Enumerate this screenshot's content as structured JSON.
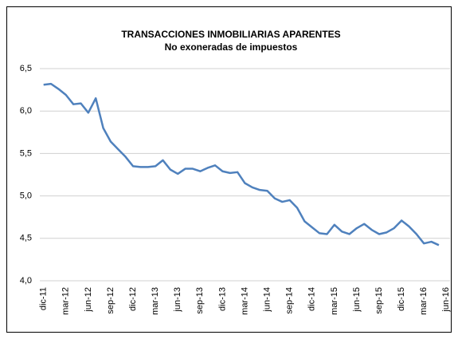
{
  "chart_data": {
    "type": "line",
    "title": "TRANSACCIONES INMOBILIARIAS APARENTES",
    "subtitle": "No exoneradas de impuestos",
    "categories": [
      "dic-11",
      null,
      null,
      "mar-12",
      null,
      null,
      "jun-12",
      null,
      null,
      "sep-12",
      null,
      null,
      "dic-12",
      null,
      null,
      "mar-13",
      null,
      null,
      "jun-13",
      null,
      null,
      "sep-13",
      null,
      null,
      "dic-13",
      null,
      null,
      "mar-14",
      null,
      null,
      "jun-14",
      null,
      null,
      "sep-14",
      null,
      null,
      "dic-14",
      null,
      null,
      "mar-15",
      null,
      null,
      "jun-15",
      null,
      null,
      "sep-15",
      null,
      null,
      "dic-15",
      null,
      null,
      "mar-16",
      null,
      null,
      "jun-16"
    ],
    "series": [
      {
        "name": "Transacciones",
        "color": "#4f81bd",
        "values": [
          6.31,
          6.32,
          6.26,
          6.19,
          6.08,
          6.09,
          5.98,
          6.15,
          5.8,
          5.64,
          5.55,
          5.46,
          5.35,
          5.34,
          5.34,
          5.35,
          5.42,
          5.31,
          5.26,
          5.32,
          5.32,
          5.29,
          5.33,
          5.36,
          5.29,
          5.27,
          5.28,
          5.15,
          5.1,
          5.07,
          5.06,
          4.97,
          4.93,
          4.95,
          4.86,
          4.7,
          4.63,
          4.56,
          4.55,
          4.66,
          4.58,
          4.55,
          4.62,
          4.67,
          4.6,
          4.55,
          4.57,
          4.62,
          4.71,
          4.64,
          4.55,
          4.44,
          4.46,
          4.42,
          null
        ]
      }
    ],
    "ylim": [
      4.0,
      6.5
    ],
    "yticks": [
      {
        "value": 4.0,
        "label": "4,0"
      },
      {
        "value": 4.5,
        "label": "4,5"
      },
      {
        "value": 5.0,
        "label": "5,0"
      },
      {
        "value": 5.5,
        "label": "5,5"
      },
      {
        "value": 6.0,
        "label": "6,0"
      },
      {
        "value": 6.5,
        "label": "6,5"
      }
    ],
    "grid": true
  }
}
